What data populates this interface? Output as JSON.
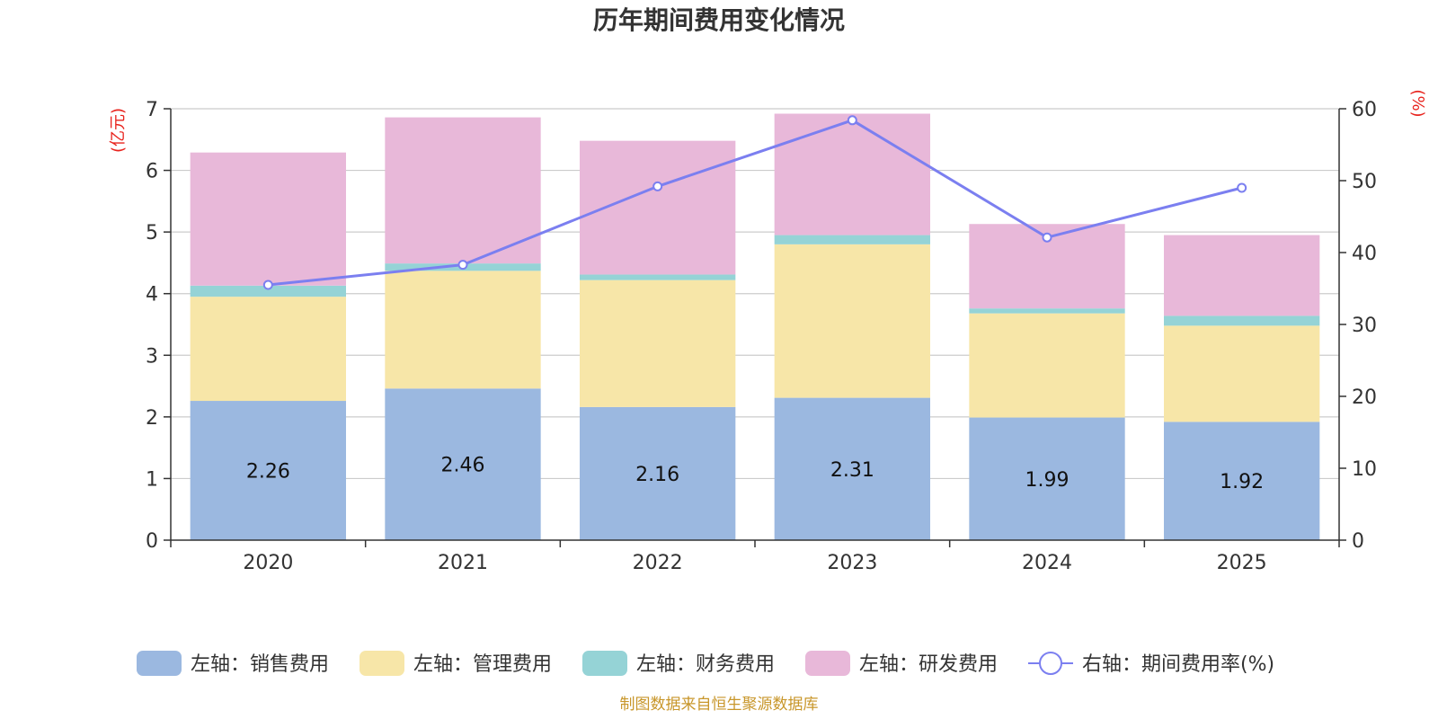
{
  "chart_data": {
    "type": "bar",
    "stacked": true,
    "title": "历年期间费用变化情况",
    "left_axis_unit": "(亿元)",
    "right_axis_unit": "(%)",
    "categories": [
      "2020",
      "2021",
      "2022",
      "2023",
      "2024",
      "2025"
    ],
    "ylim_left": [
      0,
      7
    ],
    "yticks_left": [
      "0",
      "1",
      "2",
      "3",
      "4",
      "5",
      "6",
      "7"
    ],
    "ylim_right": [
      0,
      60
    ],
    "yticks_right": [
      "0",
      "10",
      "20",
      "30",
      "40",
      "50",
      "60"
    ],
    "series": [
      {
        "name": "左轴：销售费用",
        "axis": "left",
        "color": "#9bb8e0",
        "values": [
          2.26,
          2.46,
          2.16,
          2.31,
          1.99,
          1.92
        ],
        "labels": [
          "2.26",
          "2.46",
          "2.16",
          "2.31",
          "1.99",
          "1.92"
        ]
      },
      {
        "name": "左轴：管理费用",
        "axis": "left",
        "color": "#f7e6a8",
        "values": [
          1.69,
          1.91,
          2.06,
          2.49,
          1.69,
          1.56
        ]
      },
      {
        "name": "左轴：财务费用",
        "axis": "left",
        "color": "#95d3d6",
        "values": [
          0.18,
          0.12,
          0.09,
          0.15,
          0.08,
          0.16
        ]
      },
      {
        "name": "左轴：研发费用",
        "axis": "left",
        "color": "#e8b8d9",
        "values": [
          2.16,
          2.37,
          2.17,
          1.97,
          1.37,
          1.31
        ]
      },
      {
        "name": "右轴：期间费用率(%)",
        "axis": "right",
        "type": "line",
        "color": "#7b7ff0",
        "values": [
          35.5,
          38.3,
          49.2,
          58.4,
          42.1,
          49.0
        ]
      }
    ]
  },
  "source": "制图数据来自恒生聚源数据库"
}
